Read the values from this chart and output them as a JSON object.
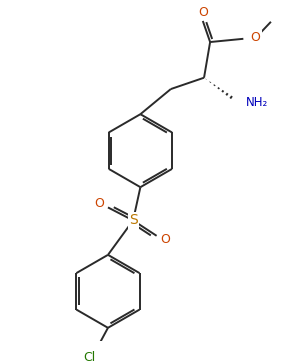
{
  "bg_color": "#ffffff",
  "line_color": "#2a2a2a",
  "atom_colors": {
    "O": "#cc4400",
    "N": "#0000bb",
    "S": "#bb7700",
    "Cl": "#227700"
  },
  "line_width": 1.4,
  "figsize": [
    2.97,
    3.62
  ],
  "dpi": 100
}
